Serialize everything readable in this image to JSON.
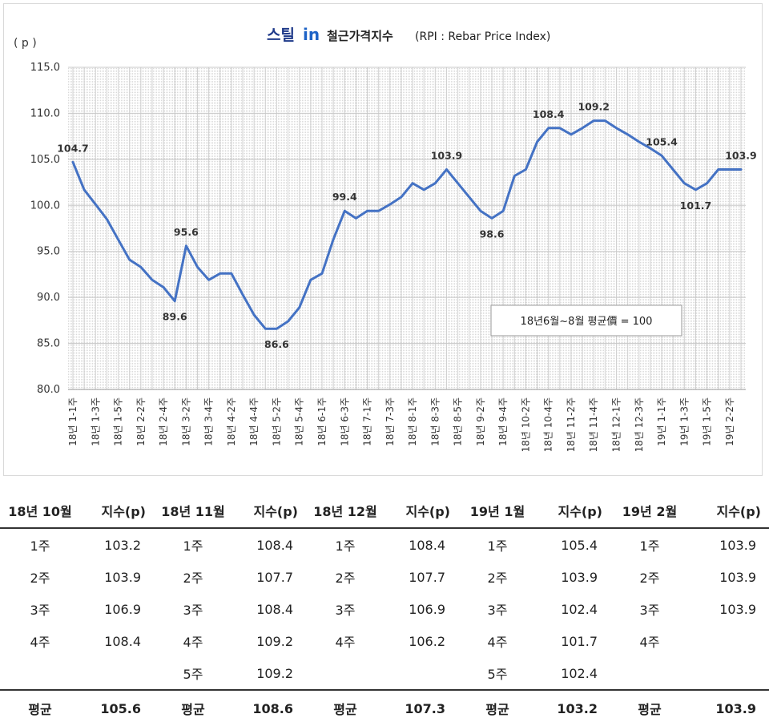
{
  "chart_data": {
    "type": "line",
    "title_brand": "스틸",
    "title_brand_in": "in",
    "title": "철근가격지수",
    "title_sub": "(RPI : Rebar Price Index)",
    "ylabel": "( p )",
    "ylim": [
      80,
      115
    ],
    "yticks": [
      "80.0",
      "85.0",
      "90.0",
      "95.0",
      "100.0",
      "105.0",
      "110.0",
      "115.0"
    ],
    "grid": true,
    "note": "18년6월~8월 평균價 = 100",
    "x_tick_labels": [
      "18년 1-1주",
      "18년 1-3주",
      "18년 1-5주",
      "18년 2-2주",
      "18년 2-4주",
      "18년 3-2주",
      "18년 3-4주",
      "18년 4-2주",
      "18년 4-4주",
      "18년 5-2주",
      "18년 5-4주",
      "18년 6-1주",
      "18년 6-3주",
      "18년 7-1주",
      "18년 7-3주",
      "18년 8-1주",
      "18년 8-3주",
      "18년 8-5주",
      "18년 9-2주",
      "18년 9-4주",
      "18년 10-2주",
      "18년 10-4주",
      "18년 11-2주",
      "18년 11-4주",
      "18년 12-1주",
      "18년 12-3주",
      "19년 1-1주",
      "19년 1-3주",
      "19년 1-5주",
      "19년 2-2주"
    ],
    "values": [
      104.7,
      101.7,
      100.1,
      98.5,
      96.3,
      94.1,
      93.3,
      91.9,
      91.1,
      89.6,
      95.6,
      93.3,
      91.9,
      92.6,
      92.6,
      90.3,
      88.1,
      86.6,
      86.6,
      87.4,
      88.9,
      91.9,
      92.6,
      96.3,
      99.4,
      98.6,
      99.4,
      99.4,
      100.1,
      100.9,
      102.4,
      101.7,
      102.4,
      103.9,
      102.4,
      100.9,
      99.4,
      98.6,
      99.4,
      103.2,
      103.9,
      106.9,
      108.4,
      108.4,
      107.7,
      108.4,
      109.2,
      109.2,
      108.4,
      107.7,
      106.9,
      106.2,
      105.4,
      103.9,
      102.4,
      101.7,
      102.4,
      103.9,
      103.9,
      103.9
    ],
    "data_labels": [
      {
        "index": 0,
        "text": "104.7",
        "pos": "above"
      },
      {
        "index": 9,
        "text": "89.6",
        "pos": "below"
      },
      {
        "index": 10,
        "text": "95.6",
        "pos": "above"
      },
      {
        "index": 18,
        "text": "86.6",
        "pos": "below"
      },
      {
        "index": 24,
        "text": "99.4",
        "pos": "above"
      },
      {
        "index": 33,
        "text": "103.9",
        "pos": "above"
      },
      {
        "index": 37,
        "text": "98.6",
        "pos": "below"
      },
      {
        "index": 42,
        "text": "108.4",
        "pos": "above"
      },
      {
        "index": 46,
        "text": "109.2",
        "pos": "above"
      },
      {
        "index": 52,
        "text": "105.4",
        "pos": "above"
      },
      {
        "index": 55,
        "text": "101.7",
        "pos": "below"
      },
      {
        "index": 59,
        "text": "103.9",
        "pos": "above"
      }
    ],
    "line_color": "#4472c4"
  },
  "table": {
    "headers": [
      "18년 10월",
      "지수(p)",
      "18년 11월",
      "지수(p)",
      "18년 12월",
      "지수(p)",
      "19년 1월",
      "지수(p)",
      "19년 2월",
      "지수(p)"
    ],
    "rows": [
      [
        "1주",
        "103.2",
        "1주",
        "108.4",
        "1주",
        "108.4",
        "1주",
        "105.4",
        "1주",
        "103.9"
      ],
      [
        "2주",
        "103.9",
        "2주",
        "107.7",
        "2주",
        "107.7",
        "2주",
        "103.9",
        "2주",
        "103.9"
      ],
      [
        "3주",
        "106.9",
        "3주",
        "108.4",
        "3주",
        "106.9",
        "3주",
        "102.4",
        "3주",
        "103.9"
      ],
      [
        "4주",
        "108.4",
        "4주",
        "109.2",
        "4주",
        "106.2",
        "4주",
        "101.7",
        "4주",
        ""
      ],
      [
        "",
        "",
        "5주",
        "109.2",
        "",
        "",
        "5주",
        "102.4",
        "",
        ""
      ]
    ],
    "avg_row": [
      "평균",
      "105.6",
      "평균",
      "108.6",
      "평균",
      "107.3",
      "평균",
      "103.2",
      "평균",
      "103.9"
    ]
  }
}
